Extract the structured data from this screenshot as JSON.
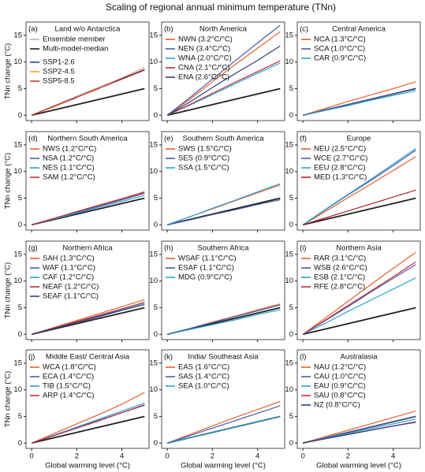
{
  "title": "Scaling of regional annual minimum temperature (TNn)",
  "chart_data": [
    {
      "type": "line",
      "label": "(a)",
      "title": "Land w/o Antarctica",
      "ylabel": "TNn change (°C)",
      "legend": "upper left",
      "x": [
        0,
        1,
        2,
        3,
        4,
        5
      ],
      "reference_values": [
        0,
        1,
        2,
        3,
        4,
        5
      ],
      "reference_color": "#222222",
      "series": [
        {
          "name": "Ensemble member",
          "color": "#b5b5b5",
          "values": [
            0,
            1.8,
            3.6,
            5.3,
            7.0,
            9.0
          ]
        },
        {
          "name": "Multi-model-median",
          "color": "#222222",
          "values": [
            0,
            1.7,
            3.4,
            5.1,
            6.8,
            8.5
          ]
        },
        {
          "name": "SSP1-2.6",
          "color": "#2e3f8f",
          "values": [
            0,
            1.7,
            3.3,
            null,
            null,
            null
          ]
        },
        {
          "name": "SSP2-4.5",
          "color": "#f0a030",
          "values": [
            0,
            1.6,
            3.4,
            5.0,
            null,
            null
          ]
        },
        {
          "name": "SSP5-8.5",
          "color": "#d6342c",
          "values": [
            0,
            1.7,
            3.4,
            5.1,
            6.9,
            8.6
          ]
        }
      ],
      "xlim": [
        -0.25,
        5.2
      ],
      "xticks": [
        0,
        2,
        4
      ],
      "ylim": [
        -1,
        17.5
      ],
      "yticks": [
        0,
        5,
        10,
        15
      ]
    },
    {
      "type": "line",
      "label": "(b)",
      "title": "North America",
      "legend": "upper left",
      "x": [
        0,
        1,
        2,
        3,
        4,
        5
      ],
      "reference_values": [
        0,
        1,
        2,
        3,
        4,
        5
      ],
      "reference_color": "#222222",
      "series": [
        {
          "name": "NWN (3.2°C/°C)",
          "color": "#e8612c",
          "values": [
            0,
            3.0,
            6.3,
            9.5,
            12.6,
            15.7
          ]
        },
        {
          "name": "NEN (3.4°C/°C)",
          "color": "#4b5bab",
          "values": [
            0,
            3.3,
            6.8,
            10.2,
            13.6,
            16.9
          ]
        },
        {
          "name": "WNA (2.0°C/°C)",
          "color": "#27a4d3",
          "values": [
            0,
            1.9,
            3.9,
            5.9,
            7.9,
            9.8
          ]
        },
        {
          "name": "CNA (2.1°C/°C)",
          "color": "#c72b3a",
          "values": [
            0,
            2.0,
            4.1,
            6.2,
            8.2,
            10.2
          ]
        },
        {
          "name": "ENA (2.6°C/°C)",
          "color": "#2e3f7a",
          "values": [
            0,
            2.5,
            5.2,
            7.8,
            10.3,
            13.0
          ]
        }
      ],
      "xlim": [
        -0.25,
        5.2
      ],
      "xticks": [
        0,
        2,
        4
      ],
      "ylim": [
        -1,
        17.5
      ],
      "yticks": [
        0,
        5,
        10,
        15
      ]
    },
    {
      "type": "line",
      "label": "(c)",
      "title": "Central America",
      "legend": "upper left",
      "x": [
        0,
        1,
        2,
        3,
        4,
        5
      ],
      "reference_values": [
        0,
        1,
        2,
        3,
        4,
        5
      ],
      "reference_color": "#222222",
      "series": [
        {
          "name": "NCA (1.3°C/°C)",
          "color": "#e8612c",
          "values": [
            0,
            1.3,
            2.6,
            3.8,
            5.0,
            6.3
          ]
        },
        {
          "name": "SCA (1.0°C/°C)",
          "color": "#4b5bab",
          "values": [
            0,
            1.0,
            2.0,
            3.0,
            4.0,
            4.9
          ]
        },
        {
          "name": "CAR (0.9°C/°C)",
          "color": "#27a4d3",
          "values": [
            0,
            0.9,
            1.8,
            2.8,
            3.7,
            4.6
          ]
        }
      ],
      "xlim": [
        -0.25,
        5.2
      ],
      "xticks": [
        0,
        2,
        4
      ],
      "ylim": [
        -1,
        17.5
      ],
      "yticks": [
        0,
        5,
        10,
        15
      ]
    },
    {
      "type": "line",
      "label": "(d)",
      "title": "Northern South America",
      "ylabel": "TNn change (°C)",
      "legend": "upper left",
      "x": [
        0,
        1,
        2,
        3,
        4,
        5
      ],
      "reference_values": [
        0,
        1,
        2,
        3,
        4,
        5
      ],
      "reference_color": "#222222",
      "series": [
        {
          "name": "NWS (1.2°C/°C)",
          "color": "#e8612c",
          "values": [
            0,
            1.2,
            2.4,
            3.6,
            4.8,
            6.0
          ]
        },
        {
          "name": "NSA (1.2°C/°C)",
          "color": "#4b5bab",
          "values": [
            0,
            1.2,
            2.3,
            3.5,
            4.7,
            5.9
          ]
        },
        {
          "name": "NES (1.1°C/°C)",
          "color": "#27a4d3",
          "values": [
            0,
            1.1,
            2.2,
            3.3,
            4.4,
            5.5
          ]
        },
        {
          "name": "SAM (1.2°C/°C)",
          "color": "#c72b3a",
          "values": [
            0,
            1.2,
            2.5,
            3.7,
            4.9,
            6.2
          ]
        }
      ],
      "xlim": [
        -0.25,
        5.2
      ],
      "xticks": [
        0,
        2,
        4
      ],
      "ylim": [
        -1,
        17.5
      ],
      "yticks": [
        0,
        5,
        10,
        15
      ]
    },
    {
      "type": "line",
      "label": "(e)",
      "title": "Southern South America",
      "legend": "upper left",
      "x": [
        0,
        1,
        2,
        3,
        4,
        5
      ],
      "reference_values": [
        0,
        1,
        2,
        3,
        4,
        5
      ],
      "reference_color": "#222222",
      "series": [
        {
          "name": "SWS (1.5°C/°C)",
          "color": "#e8612c",
          "values": [
            0,
            1.5,
            3.0,
            4.5,
            6.0,
            7.5
          ]
        },
        {
          "name": "SES (0.9°C/°C)",
          "color": "#4b5bab",
          "values": [
            0,
            0.9,
            1.9,
            2.8,
            3.8,
            4.7
          ]
        },
        {
          "name": "SSA (1.5°C/°C)",
          "color": "#27a4d3",
          "values": [
            0,
            1.5,
            3.1,
            4.6,
            6.2,
            7.7
          ]
        }
      ],
      "xlim": [
        -0.25,
        5.2
      ],
      "xticks": [
        0,
        2,
        4
      ],
      "ylim": [
        -1,
        17.5
      ],
      "yticks": [
        0,
        5,
        10,
        15
      ]
    },
    {
      "type": "line",
      "label": "(f)",
      "title": "Europe",
      "legend": "upper left",
      "x": [
        0,
        1,
        2,
        3,
        4,
        5
      ],
      "reference_values": [
        0,
        1,
        2,
        3,
        4,
        5
      ],
      "reference_color": "#222222",
      "series": [
        {
          "name": "NEU (2.5°C/°C)",
          "color": "#e8612c",
          "values": [
            0,
            2.5,
            5.1,
            7.6,
            10.2,
            12.8
          ]
        },
        {
          "name": "WCE (2.7°C/°C)",
          "color": "#4b5bab",
          "values": [
            0,
            2.8,
            5.6,
            8.3,
            11.1,
            14.0
          ]
        },
        {
          "name": "EEU (2.8°C/°C)",
          "color": "#27a4d3",
          "values": [
            0,
            2.9,
            5.7,
            8.5,
            11.4,
            14.3
          ]
        },
        {
          "name": "MED (1.3°C/°C)",
          "color": "#b0202e",
          "values": [
            0,
            1.3,
            2.6,
            3.9,
            5.2,
            6.5
          ]
        }
      ],
      "xlim": [
        -0.25,
        5.2
      ],
      "xticks": [
        0,
        2,
        4
      ],
      "ylim": [
        -1,
        17.5
      ],
      "yticks": [
        0,
        5,
        10,
        15
      ]
    },
    {
      "type": "line",
      "label": "(g)",
      "title": "Northern Africa",
      "ylabel": "TNn change (°C)",
      "legend": "upper left",
      "x": [
        0,
        1,
        2,
        3,
        4,
        5
      ],
      "reference_values": [
        0,
        1,
        2,
        3,
        4,
        5
      ],
      "reference_color": "#222222",
      "series": [
        {
          "name": "SAH (1.3°C/°C)",
          "color": "#e8612c",
          "values": [
            0,
            1.3,
            2.6,
            3.9,
            5.2,
            6.5
          ]
        },
        {
          "name": "WAF (1.1°C/°C)",
          "color": "#4b5bab",
          "values": [
            0,
            1.1,
            2.2,
            3.3,
            4.5,
            5.6
          ]
        },
        {
          "name": "CAF (1.2°C/°C)",
          "color": "#27a4d3",
          "values": [
            0,
            1.2,
            2.4,
            3.5,
            4.7,
            5.9
          ]
        },
        {
          "name": "NEAF (1.2°C/°C)",
          "color": "#c72b3a",
          "values": [
            0,
            1.2,
            2.4,
            3.6,
            4.8,
            6.0
          ]
        },
        {
          "name": "SEAF (1.1°C/°C)",
          "color": "#2e3f7a",
          "values": [
            0,
            1.1,
            2.2,
            3.4,
            4.5,
            5.6
          ]
        }
      ],
      "xlim": [
        -0.25,
        5.2
      ],
      "xticks": [
        0,
        2,
        4
      ],
      "ylim": [
        -1,
        17.5
      ],
      "yticks": [
        0,
        5,
        10,
        15
      ]
    },
    {
      "type": "line",
      "label": "(h)",
      "title": "Southern Africa",
      "legend": "upper left",
      "x": [
        0,
        1,
        2,
        3,
        4,
        5
      ],
      "reference_values": [
        0,
        1,
        2,
        3,
        4,
        5
      ],
      "reference_color": "#222222",
      "series": [
        {
          "name": "WSAF (1.1°C/°C)",
          "color": "#e8612c",
          "values": [
            0,
            1.1,
            2.3,
            3.4,
            4.6,
            5.7
          ]
        },
        {
          "name": "ESAF (1.1°C/°C)",
          "color": "#4b5bab",
          "values": [
            0,
            1.1,
            2.2,
            3.3,
            4.4,
            5.5
          ]
        },
        {
          "name": "MDG (0.9°C/°C)",
          "color": "#27a4d3",
          "values": [
            0,
            0.9,
            1.8,
            2.7,
            3.7,
            4.6
          ]
        }
      ],
      "xlim": [
        -0.25,
        5.2
      ],
      "xticks": [
        0,
        2,
        4
      ],
      "ylim": [
        -1,
        17.5
      ],
      "yticks": [
        0,
        5,
        10,
        15
      ]
    },
    {
      "type": "line",
      "label": "(i)",
      "title": "Northern Asia",
      "legend": "upper left",
      "x": [
        0,
        1,
        2,
        3,
        4,
        5
      ],
      "reference_values": [
        0,
        1,
        2,
        3,
        4,
        5
      ],
      "reference_color": "#222222",
      "series": [
        {
          "name": "RAR (3.1°C/°C)",
          "color": "#e8612c",
          "values": [
            0,
            3.1,
            6.2,
            9.3,
            12.4,
            15.4
          ]
        },
        {
          "name": "WSB (2.6°C/°C)",
          "color": "#4b5bab",
          "values": [
            0,
            2.6,
            5.2,
            7.9,
            10.5,
            13.1
          ]
        },
        {
          "name": "ESB (2.1°C/°C)",
          "color": "#27a4d3",
          "values": [
            0,
            2.1,
            4.3,
            6.4,
            8.5,
            10.6
          ]
        },
        {
          "name": "RFE (2.8°C/°C)",
          "color": "#c72b3a",
          "values": [
            0,
            2.7,
            5.4,
            8.1,
            10.8,
            13.6
          ]
        }
      ],
      "xlim": [
        -0.25,
        5.2
      ],
      "xticks": [
        0,
        2,
        4
      ],
      "ylim": [
        -1,
        17.5
      ],
      "yticks": [
        0,
        5,
        10,
        15
      ]
    },
    {
      "type": "line",
      "label": "(j)",
      "title": "Middle East/ Central Asia",
      "ylabel": "TNn change (°C)",
      "xlabel": "Global warming level (°C)",
      "legend": "upper left",
      "x": [
        0,
        1,
        2,
        3,
        4,
        5
      ],
      "reference_values": [
        0,
        1,
        2,
        3,
        4,
        5
      ],
      "reference_color": "#222222",
      "series": [
        {
          "name": "WCA (1.8°C/°C)",
          "color": "#e8612c",
          "values": [
            0,
            1.8,
            3.6,
            5.4,
            7.3,
            9.5
          ]
        },
        {
          "name": "ECA (1.4°C/°C)",
          "color": "#4b5bab",
          "values": [
            0,
            1.4,
            2.9,
            4.3,
            5.7,
            7.1
          ]
        },
        {
          "name": "TIB (1.5°C/°C)",
          "color": "#27a4d3",
          "values": [
            0,
            1.5,
            3.0,
            4.5,
            6.0,
            7.5
          ]
        },
        {
          "name": "ARP (1.4°C/°C)",
          "color": "#c72b3a",
          "values": [
            0,
            1.4,
            2.8,
            4.2,
            5.7,
            7.2
          ]
        }
      ],
      "xlim": [
        -0.25,
        5.2
      ],
      "xticks": [
        0,
        2,
        4
      ],
      "ylim": [
        -1,
        17.5
      ],
      "yticks": [
        0,
        5,
        10,
        15
      ]
    },
    {
      "type": "line",
      "label": "(k)",
      "title": "India/ Southeast Asia",
      "xlabel": "Global warming level (°C)",
      "legend": "upper left",
      "x": [
        0,
        1,
        2,
        3,
        4,
        5
      ],
      "reference_values": [
        0,
        1,
        2,
        3,
        4,
        5
      ],
      "reference_color": "#222222",
      "series": [
        {
          "name": "EAS (1.6°C/°C)",
          "color": "#e8612c",
          "values": [
            0,
            1.6,
            3.2,
            4.8,
            6.3,
            7.8
          ]
        },
        {
          "name": "SAS (1.4°C/°C)",
          "color": "#4b5bab",
          "values": [
            0,
            1.4,
            2.8,
            4.2,
            5.6,
            7.0
          ]
        },
        {
          "name": "SEA (1.0°C/°C)",
          "color": "#27a4d3",
          "values": [
            0,
            1.0,
            2.0,
            3.0,
            4.0,
            5.0
          ]
        }
      ],
      "xlim": [
        -0.25,
        5.2
      ],
      "xticks": [
        0,
        2,
        4
      ],
      "ylim": [
        -1,
        17.5
      ],
      "yticks": [
        0,
        5,
        10,
        15
      ]
    },
    {
      "type": "line",
      "label": "(l)",
      "title": "Australasia",
      "xlabel": "Global warming level (°C)",
      "legend": "upper left",
      "x": [
        0,
        1,
        2,
        3,
        4,
        5
      ],
      "reference_values": [
        0,
        1,
        2,
        3,
        4,
        5
      ],
      "reference_color": "#222222",
      "series": [
        {
          "name": "NAU (1.2°C/°C)",
          "color": "#e8612c",
          "values": [
            0,
            1.2,
            2.4,
            3.6,
            4.8,
            6.0
          ]
        },
        {
          "name": "CAU (1.0°C/°C)",
          "color": "#4b5bab",
          "values": [
            0,
            1.0,
            2.0,
            3.0,
            4.0,
            5.0
          ]
        },
        {
          "name": "EAU (0.9°C/°C)",
          "color": "#27a4d3",
          "values": [
            0,
            0.9,
            1.8,
            2.7,
            3.6,
            4.5
          ]
        },
        {
          "name": "SAU (0.8°C/°C)",
          "color": "#c72b3a",
          "values": [
            0,
            0.8,
            1.6,
            2.4,
            3.2,
            4.0
          ]
        },
        {
          "name": "NZ (0.8°C/°C)",
          "color": "#2e3f7a",
          "values": [
            0,
            0.8,
            1.6,
            2.4,
            3.2,
            3.9
          ]
        }
      ],
      "xlim": [
        -0.25,
        5.2
      ],
      "xticks": [
        0,
        2,
        4
      ],
      "ylim": [
        -1,
        17.5
      ],
      "yticks": [
        0,
        5,
        10,
        15
      ]
    }
  ]
}
